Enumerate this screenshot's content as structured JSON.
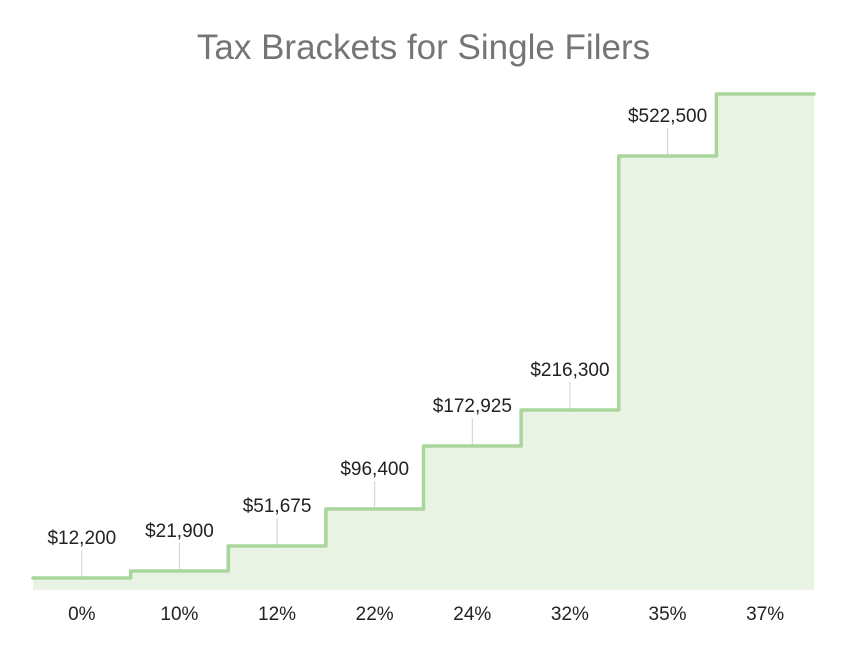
{
  "chart_data": {
    "type": "area",
    "step": true,
    "title": "Tax Brackets for Single Filers",
    "xlabel": "",
    "ylabel": "",
    "categories": [
      "0%",
      "10%",
      "12%",
      "22%",
      "24%",
      "32%",
      "35%",
      "37%"
    ],
    "values": [
      12200,
      21900,
      51675,
      96400,
      172925,
      216300,
      522500,
      600000
    ],
    "data_labels": [
      "$12,200",
      "$21,900",
      "$51,675",
      "$96,400",
      "$172,925",
      "$216,300",
      "$522,500",
      ""
    ],
    "ylim": [
      0,
      600000
    ],
    "grid": false,
    "legend": "none",
    "colors": {
      "line": "#a9d69c",
      "fill": "#e8f3e3",
      "leader": "#cfcfcf"
    }
  }
}
